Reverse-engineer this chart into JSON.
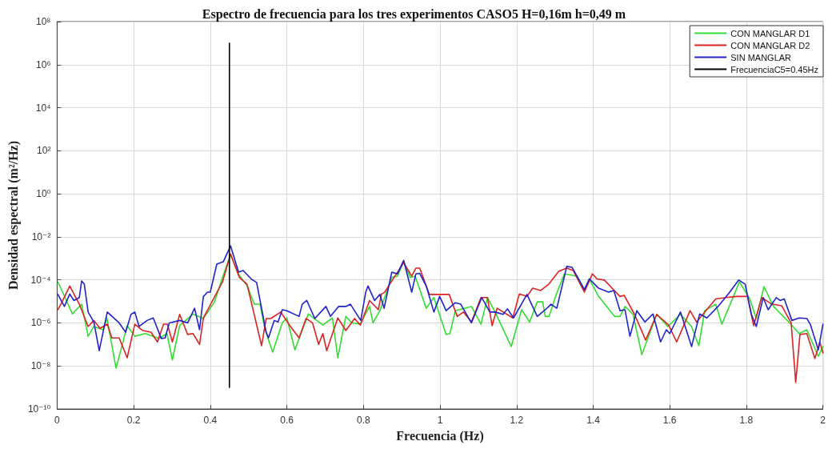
{
  "chart_data": {
    "type": "line",
    "title": "Espectro de frecuencia para los tres experimentos CASO5 H=0,16m h=0,49 m",
    "xlabel": "Frecuencia (Hz)",
    "ylabel": "Densidad espectral (m²/Hz)",
    "xlim": [
      0,
      2
    ],
    "xticks": [
      0,
      0.2,
      0.4,
      0.6,
      0.8,
      1,
      1.2,
      1.4,
      1.6,
      1.8,
      2
    ],
    "ylim": [
      1e-10,
      100000000.0
    ],
    "yticks": [
      {
        "value": 1e-10,
        "label": "10⁻¹⁰"
      },
      {
        "value": 1e-08,
        "label": "10⁻⁸"
      },
      {
        "value": 1e-06,
        "label": "10⁻⁶"
      },
      {
        "value": 0.0001,
        "label": "10⁻⁴"
      },
      {
        "value": 0.01,
        "label": "10⁻²"
      },
      {
        "value": 1,
        "label": "10⁰"
      },
      {
        "value": 100,
        "label": "10²"
      },
      {
        "value": 10000.0,
        "label": "10⁴"
      },
      {
        "value": 1000000.0,
        "label": "10⁶"
      },
      {
        "value": 100000000.0,
        "label": "10⁸"
      }
    ],
    "log": true,
    "grid": true,
    "legend": "top right",
    "marker": "none",
    "line_style": "solid",
    "series": [
      {
        "name": "CON MANGLAR D1",
        "color": "#33dd33",
        "x": [
          0.002,
          0.04,
          0.064,
          0.081,
          0.096,
          0.12,
          0.13,
          0.154,
          0.183,
          0.203,
          0.23,
          0.266,
          0.287,
          0.301,
          0.32,
          0.355,
          0.382,
          0.411,
          0.432,
          0.453,
          0.474,
          0.496,
          0.515,
          0.53,
          0.542,
          0.563,
          0.588,
          0.6,
          0.621,
          0.656,
          0.694,
          0.719,
          0.733,
          0.754,
          0.77,
          0.791,
          0.816,
          0.825,
          0.843,
          0.874,
          0.889,
          0.905,
          0.922,
          0.935,
          0.964,
          0.984,
          1.016,
          1.026,
          1.04,
          1.082,
          1.107,
          1.124,
          1.144,
          1.186,
          1.213,
          1.234,
          1.254,
          1.268,
          1.275,
          1.285,
          1.304,
          1.325,
          1.358,
          1.377,
          1.39,
          1.414,
          1.456,
          1.47,
          1.483,
          1.504,
          1.527,
          1.566,
          1.595,
          1.628,
          1.657,
          1.676,
          1.691,
          1.72,
          1.736,
          1.782,
          1.809,
          1.826,
          1.846,
          1.871,
          1.913,
          1.938,
          1.958,
          1.988,
          2.0
        ],
        "values": [
          8e-05,
          2.6e-06,
          7.4e-06,
          2.4e-07,
          6.8e-07,
          4.8e-07,
          1.7e-06,
          7.9e-09,
          7.4e-07,
          2.4e-07,
          3.2e-07,
          1.9e-07,
          3.2e-07,
          1.9e-08,
          7.4e-07,
          2.6e-06,
          1.6e-06,
          9.5e-06,
          0.00013,
          0.0015,
          0.00018,
          5.4e-05,
          7.4e-06,
          7.4e-06,
          5.6e-07,
          4.4e-08,
          1e-06,
          1.7e-06,
          5.6e-08,
          2.6e-06,
          7.9e-07,
          1.7e-06,
          2.4e-08,
          2e-06,
          1e-06,
          8.7e-07,
          5.8e-06,
          1e-06,
          3.7e-06,
          0.00013,
          0.00015,
          0.00069,
          0.00013,
          0.00015,
          4.8e-06,
          1.5e-05,
          2.9e-07,
          3.2e-07,
          3.7e-06,
          5.8e-06,
          8.7e-07,
          1.5e-05,
          3.2e-06,
          7.9e-08,
          4.1e-06,
          1.1e-06,
          9.5e-06,
          9.5e-06,
          2e-06,
          2e-06,
          2.2e-05,
          0.00019,
          0.00015,
          3.5e-05,
          0.00011,
          1.7e-05,
          2e-06,
          2e-06,
          5.8e-06,
          2.5e-06,
          3.4e-08,
          2.5e-06,
          6.8e-07,
          2.5e-06,
          6.8e-07,
          8.7e-08,
          3.7e-06,
          7.4e-06,
          8.7e-07,
          8.1e-05,
          1.3e-05,
          1.6e-06,
          4.9e-05,
          5.8e-06,
          1e-06,
          3.2e-07,
          4.8e-07,
          2.8e-08,
          7.9e-08
        ]
      },
      {
        "name": "CON MANGLAR D2",
        "color": "#dd2222",
        "x": [
          0.002,
          0.012,
          0.033,
          0.058,
          0.081,
          0.096,
          0.112,
          0.131,
          0.143,
          0.162,
          0.183,
          0.203,
          0.224,
          0.245,
          0.262,
          0.278,
          0.288,
          0.301,
          0.32,
          0.341,
          0.355,
          0.372,
          0.382,
          0.432,
          0.453,
          0.476,
          0.496,
          0.534,
          0.546,
          0.558,
          0.584,
          0.608,
          0.632,
          0.65,
          0.667,
          0.683,
          0.694,
          0.704,
          0.733,
          0.754,
          0.777,
          0.792,
          0.816,
          0.839,
          0.847,
          0.855,
          0.905,
          0.926,
          0.937,
          0.947,
          0.972,
          0.999,
          1.024,
          1.045,
          1.061,
          1.082,
          1.107,
          1.124,
          1.136,
          1.149,
          1.19,
          1.207,
          1.227,
          1.242,
          1.263,
          1.284,
          1.31,
          1.331,
          1.348,
          1.377,
          1.398,
          1.41,
          1.429,
          1.47,
          1.481,
          1.508,
          1.537,
          1.566,
          1.597,
          1.618,
          1.653,
          1.67,
          1.72,
          1.747,
          1.774,
          1.803,
          1.819,
          1.84,
          1.867,
          1.892,
          1.917,
          1.929,
          1.94,
          1.958,
          1.979,
          1.992,
          2.0
        ],
        "values": [
          4.1e-06,
          8.7e-06,
          5.2e-05,
          7.4e-06,
          6.8e-07,
          1.3e-06,
          5.6e-07,
          8.7e-07,
          2e-07,
          2e-07,
          2.4e-08,
          8.7e-07,
          4.4e-07,
          3.7e-07,
          1.3e-07,
          8.7e-07,
          8.7e-07,
          1.3e-07,
          2.5e-06,
          2.9e-07,
          3.2e-07,
          1e-07,
          1.7e-06,
          8.1e-05,
          0.0016,
          0.00013,
          6.3e-05,
          8.7e-08,
          1.6e-06,
          1.6e-06,
          3.2e-06,
          7.4e-07,
          2e-07,
          1.6e-06,
          1e-06,
          1e-07,
          3.2e-07,
          5.1e-08,
          1.7e-06,
          4.4e-07,
          1.6e-06,
          7.9e-07,
          1.1e-05,
          4.1e-06,
          2.2e-05,
          2.6e-05,
          0.00063,
          0.00015,
          0.00035,
          0.00035,
          2.1e-05,
          2.1e-05,
          2.1e-05,
          2e-06,
          3.2e-06,
          1.1e-06,
          1.5e-05,
          1.5e-05,
          7.4e-07,
          4.8e-06,
          1.7e-06,
          2.2e-05,
          1.7e-05,
          4.1e-05,
          3.2e-05,
          6.3e-05,
          0.00025,
          0.00035,
          0.00027,
          2.7e-05,
          0.00019,
          0.00011,
          9.8e-05,
          1.7e-05,
          1.9e-05,
          2.5e-06,
          1.6e-07,
          2.5e-06,
          7.9e-07,
          1.3e-07,
          3.7e-06,
          1.1e-06,
          1.3e-05,
          1.5e-05,
          1.7e-05,
          1.7e-05,
          7.4e-07,
          1.5e-05,
          7.4e-06,
          6.3e-06,
          1e-06,
          1.7e-09,
          2.9e-07,
          3.2e-07,
          2.2e-08,
          1.3e-07,
          4e-08
        ]
      },
      {
        "name": "SIN MANGLAR",
        "color": "#2222cc",
        "x": [
          0.002,
          0.019,
          0.033,
          0.044,
          0.058,
          0.064,
          0.071,
          0.081,
          0.096,
          0.11,
          0.131,
          0.162,
          0.179,
          0.193,
          0.203,
          0.214,
          0.235,
          0.251,
          0.272,
          0.282,
          0.293,
          0.32,
          0.341,
          0.359,
          0.372,
          0.382,
          0.393,
          0.4,
          0.417,
          0.434,
          0.453,
          0.474,
          0.486,
          0.507,
          0.521,
          0.546,
          0.552,
          0.567,
          0.577,
          0.588,
          0.6,
          0.632,
          0.64,
          0.652,
          0.673,
          0.702,
          0.714,
          0.735,
          0.754,
          0.766,
          0.793,
          0.806,
          0.812,
          0.829,
          0.843,
          0.854,
          0.874,
          0.889,
          0.905,
          0.926,
          0.937,
          0.947,
          0.964,
          0.984,
          0.999,
          1.016,
          1.04,
          1.054,
          1.082,
          1.109,
          1.13,
          1.144,
          1.165,
          1.176,
          1.192,
          1.227,
          1.254,
          1.275,
          1.29,
          1.305,
          1.331,
          1.345,
          1.377,
          1.39,
          1.414,
          1.44,
          1.454,
          1.47,
          1.483,
          1.496,
          1.514,
          1.535,
          1.556,
          1.576,
          1.591,
          1.6,
          1.628,
          1.657,
          1.678,
          1.697,
          1.726,
          1.753,
          1.78,
          1.797,
          1.813,
          1.826,
          1.844,
          1.857,
          1.878,
          1.888,
          1.899,
          1.919,
          1.938,
          1.958,
          1.967,
          1.988,
          2.0
        ],
        "values": [
          2.1e-05,
          5.8e-06,
          2.2e-05,
          1.1e-05,
          1.5e-05,
          8.9e-05,
          6.3e-05,
          3.2e-06,
          1.1e-06,
          5.1e-08,
          3.2e-06,
          1e-06,
          3.7e-07,
          2.5e-06,
          3.2e-06,
          6.8e-07,
          1.3e-06,
          1.7e-06,
          1.9e-07,
          2e-07,
          1e-06,
          1.3e-06,
          1e-06,
          4.8e-06,
          4.8e-07,
          1.7e-05,
          2.7e-05,
          2.7e-05,
          0.00054,
          0.00069,
          0.0038,
          0.00023,
          0.00027,
          0.00011,
          7.6e-05,
          3.7e-07,
          2e-07,
          1.3e-06,
          1.1e-06,
          4.1e-06,
          3.7e-06,
          2e-06,
          7.4e-06,
          1.1e-05,
          1.6e-06,
          5.8e-06,
          2e-06,
          5.8e-06,
          5.8e-06,
          7.4e-06,
          1.3e-06,
          2.7e-05,
          5.2e-05,
          1.1e-05,
          2.1e-05,
          4.8e-06,
          0.00023,
          0.00019,
          0.00081,
          2.7e-05,
          0.00019,
          0.0002,
          5.2e-05,
          3.2e-06,
          1.7e-05,
          3.7e-06,
          8.7e-06,
          7.4e-06,
          1e-06,
          1.5e-05,
          3.2e-06,
          3.2e-06,
          2.5e-06,
          4.5e-06,
          1.7e-06,
          2.1e-05,
          2e-06,
          4.1e-06,
          7.4e-06,
          4.8e-06,
          0.00042,
          0.00038,
          3.5e-05,
          0.00011,
          4.1e-05,
          2.7e-05,
          3.2e-05,
          3.7e-06,
          4.1e-06,
          2.4e-07,
          3.7e-06,
          1.1e-06,
          2.6e-06,
          1.3e-07,
          4.8e-07,
          3.2e-07,
          3.2e-06,
          7.9e-08,
          2.6e-06,
          1.7e-06,
          5.8e-06,
          2.2e-05,
          9.8e-05,
          6.3e-05,
          2.5e-06,
          6.8e-07,
          1.5e-05,
          4.1e-06,
          1.5e-05,
          1.1e-05,
          1.3e-05,
          1.3e-06,
          1.7e-06,
          1.6e-06,
          8.7e-07,
          5.6e-08,
          8.7e-07
        ]
      },
      {
        "name": "FrecuenciaC5=0.45Hz",
        "color": "#000000",
        "x": [
          0.45,
          0.45
        ],
        "values": [
          1e-09,
          10000000.0
        ]
      }
    ]
  }
}
